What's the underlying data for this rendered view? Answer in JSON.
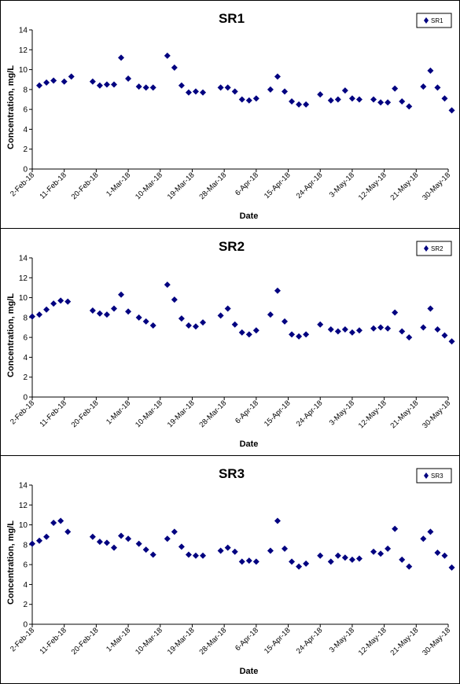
{
  "chart_data": [
    {
      "type": "scatter",
      "title": "SR1",
      "xlabel": "Date",
      "ylabel": "Concentration, mg/L",
      "ylim": [
        0,
        14
      ],
      "yticks": [
        0,
        2,
        4,
        6,
        8,
        10,
        12,
        14
      ],
      "xlim": [
        "2018-02-02",
        "2018-05-30"
      ],
      "xtick_labels": [
        "2-Feb-18",
        "11-Feb-18",
        "20-Feb-18",
        "1-Mar-18",
        "10-Mar-18",
        "19-Mar-18",
        "28-Mar-18",
        "6-Apr-18",
        "15-Apr-18",
        "24-Apr-18",
        "3-May-18",
        "12-May-18",
        "21-May-18",
        "30-May-18"
      ],
      "grid": false,
      "legend": "top-right",
      "marker": "diamond",
      "color": "#000080",
      "series": [
        {
          "name": "SR1",
          "points": [
            [
              "2018-02-04",
              8.4
            ],
            [
              "2018-02-06",
              8.7
            ],
            [
              "2018-02-08",
              8.9
            ],
            [
              "2018-02-11",
              8.8
            ],
            [
              "2018-02-13",
              9.3
            ],
            [
              "2018-02-19",
              8.8
            ],
            [
              "2018-02-21",
              8.4
            ],
            [
              "2018-02-23",
              8.5
            ],
            [
              "2018-02-25",
              8.5
            ],
            [
              "2018-02-27",
              11.2
            ],
            [
              "2018-03-01",
              9.1
            ],
            [
              "2018-03-04",
              8.3
            ],
            [
              "2018-03-06",
              8.2
            ],
            [
              "2018-03-08",
              8.2
            ],
            [
              "2018-03-12",
              11.4
            ],
            [
              "2018-03-14",
              10.2
            ],
            [
              "2018-03-16",
              8.4
            ],
            [
              "2018-03-18",
              7.7
            ],
            [
              "2018-03-20",
              7.8
            ],
            [
              "2018-03-22",
              7.7
            ],
            [
              "2018-03-27",
              8.2
            ],
            [
              "2018-03-29",
              8.2
            ],
            [
              "2018-03-31",
              7.8
            ],
            [
              "2018-04-02",
              7.0
            ],
            [
              "2018-04-04",
              6.9
            ],
            [
              "2018-04-06",
              7.1
            ],
            [
              "2018-04-10",
              8.0
            ],
            [
              "2018-04-12",
              9.3
            ],
            [
              "2018-04-14",
              7.8
            ],
            [
              "2018-04-16",
              6.8
            ],
            [
              "2018-04-18",
              6.5
            ],
            [
              "2018-04-20",
              6.5
            ],
            [
              "2018-04-24",
              7.5
            ],
            [
              "2018-04-27",
              6.9
            ],
            [
              "2018-04-29",
              7.0
            ],
            [
              "2018-05-01",
              7.9
            ],
            [
              "2018-05-03",
              7.1
            ],
            [
              "2018-05-05",
              7.0
            ],
            [
              "2018-05-09",
              7.0
            ],
            [
              "2018-05-11",
              6.7
            ],
            [
              "2018-05-13",
              6.7
            ],
            [
              "2018-05-15",
              8.1
            ],
            [
              "2018-05-17",
              6.8
            ],
            [
              "2018-05-19",
              6.3
            ],
            [
              "2018-05-23",
              8.3
            ],
            [
              "2018-05-25",
              9.9
            ],
            [
              "2018-05-27",
              8.2
            ],
            [
              "2018-05-29",
              7.1
            ],
            [
              "2018-05-31",
              5.9
            ]
          ]
        }
      ]
    },
    {
      "type": "scatter",
      "title": "SR2",
      "xlabel": "Date",
      "ylabel": "Concentration, mg/L",
      "ylim": [
        0,
        14
      ],
      "yticks": [
        0,
        2,
        4,
        6,
        8,
        10,
        12,
        14
      ],
      "xlim": [
        "2018-02-02",
        "2018-05-30"
      ],
      "xtick_labels": [
        "2-Feb-18",
        "11-Feb-18",
        "20-Feb-18",
        "1-Mar-18",
        "10-Mar-18",
        "19-Mar-18",
        "28-Mar-18",
        "6-Apr-18",
        "15-Apr-18",
        "24-Apr-18",
        "3-May-18",
        "12-May-18",
        "21-May-18",
        "30-May-18"
      ],
      "grid": false,
      "legend": "top-right",
      "marker": "diamond",
      "color": "#000080",
      "series": [
        {
          "name": "SR2",
          "points": [
            [
              "2018-02-02",
              8.1
            ],
            [
              "2018-02-04",
              8.3
            ],
            [
              "2018-02-06",
              8.8
            ],
            [
              "2018-02-08",
              9.4
            ],
            [
              "2018-02-10",
              9.7
            ],
            [
              "2018-02-12",
              9.6
            ],
            [
              "2018-02-19",
              8.7
            ],
            [
              "2018-02-21",
              8.4
            ],
            [
              "2018-02-23",
              8.3
            ],
            [
              "2018-02-25",
              8.9
            ],
            [
              "2018-02-27",
              10.3
            ],
            [
              "2018-03-01",
              8.6
            ],
            [
              "2018-03-04",
              8.0
            ],
            [
              "2018-03-06",
              7.6
            ],
            [
              "2018-03-08",
              7.2
            ],
            [
              "2018-03-12",
              11.3
            ],
            [
              "2018-03-14",
              9.8
            ],
            [
              "2018-03-16",
              7.9
            ],
            [
              "2018-03-18",
              7.2
            ],
            [
              "2018-03-20",
              7.1
            ],
            [
              "2018-03-22",
              7.5
            ],
            [
              "2018-03-27",
              8.2
            ],
            [
              "2018-03-29",
              8.9
            ],
            [
              "2018-03-31",
              7.3
            ],
            [
              "2018-04-02",
              6.5
            ],
            [
              "2018-04-04",
              6.3
            ],
            [
              "2018-04-06",
              6.7
            ],
            [
              "2018-04-10",
              8.3
            ],
            [
              "2018-04-12",
              10.7
            ],
            [
              "2018-04-14",
              7.6
            ],
            [
              "2018-04-16",
              6.3
            ],
            [
              "2018-04-18",
              6.1
            ],
            [
              "2018-04-20",
              6.3
            ],
            [
              "2018-04-24",
              7.3
            ],
            [
              "2018-04-27",
              6.8
            ],
            [
              "2018-04-29",
              6.6
            ],
            [
              "2018-05-01",
              6.8
            ],
            [
              "2018-05-03",
              6.5
            ],
            [
              "2018-05-05",
              6.7
            ],
            [
              "2018-05-09",
              6.9
            ],
            [
              "2018-05-11",
              7.0
            ],
            [
              "2018-05-13",
              6.9
            ],
            [
              "2018-05-15",
              8.5
            ],
            [
              "2018-05-17",
              6.6
            ],
            [
              "2018-05-19",
              6.0
            ],
            [
              "2018-05-23",
              7.0
            ],
            [
              "2018-05-25",
              8.9
            ],
            [
              "2018-05-27",
              6.8
            ],
            [
              "2018-05-29",
              6.2
            ],
            [
              "2018-05-31",
              5.6
            ]
          ]
        }
      ]
    },
    {
      "type": "scatter",
      "title": "SR3",
      "xlabel": "Date",
      "ylabel": "Concentration, mg/L",
      "ylim": [
        0,
        14
      ],
      "yticks": [
        0,
        2,
        4,
        6,
        8,
        10,
        12,
        14
      ],
      "xlim": [
        "2018-02-02",
        "2018-05-30"
      ],
      "xtick_labels": [
        "2-Feb-18",
        "11-Feb-18",
        "20-Feb-18",
        "1-Mar-18",
        "10-Mar-18",
        "19-Mar-18",
        "28-Mar-18",
        "6-Apr-18",
        "15-Apr-18",
        "24-Apr-18",
        "3-May-18",
        "12-May-18",
        "21-May-18",
        "30-May-18"
      ],
      "grid": false,
      "legend": "top-right",
      "marker": "diamond",
      "color": "#000080",
      "series": [
        {
          "name": "SR3",
          "points": [
            [
              "2018-02-02",
              8.1
            ],
            [
              "2018-02-04",
              8.4
            ],
            [
              "2018-02-06",
              8.8
            ],
            [
              "2018-02-08",
              10.2
            ],
            [
              "2018-02-10",
              10.4
            ],
            [
              "2018-02-12",
              9.3
            ],
            [
              "2018-02-19",
              8.8
            ],
            [
              "2018-02-21",
              8.3
            ],
            [
              "2018-02-23",
              8.2
            ],
            [
              "2018-02-25",
              7.7
            ],
            [
              "2018-02-27",
              8.9
            ],
            [
              "2018-03-01",
              8.6
            ],
            [
              "2018-03-04",
              8.1
            ],
            [
              "2018-03-06",
              7.5
            ],
            [
              "2018-03-08",
              7.0
            ],
            [
              "2018-03-12",
              8.6
            ],
            [
              "2018-03-14",
              9.3
            ],
            [
              "2018-03-16",
              7.8
            ],
            [
              "2018-03-18",
              7.0
            ],
            [
              "2018-03-20",
              6.9
            ],
            [
              "2018-03-22",
              6.9
            ],
            [
              "2018-03-27",
              7.4
            ],
            [
              "2018-03-29",
              7.7
            ],
            [
              "2018-03-31",
              7.3
            ],
            [
              "2018-04-02",
              6.3
            ],
            [
              "2018-04-04",
              6.4
            ],
            [
              "2018-04-06",
              6.3
            ],
            [
              "2018-04-10",
              7.4
            ],
            [
              "2018-04-12",
              10.4
            ],
            [
              "2018-04-14",
              7.6
            ],
            [
              "2018-04-16",
              6.3
            ],
            [
              "2018-04-18",
              5.8
            ],
            [
              "2018-04-20",
              6.1
            ],
            [
              "2018-04-24",
              6.9
            ],
            [
              "2018-04-27",
              6.3
            ],
            [
              "2018-04-29",
              6.9
            ],
            [
              "2018-05-01",
              6.7
            ],
            [
              "2018-05-03",
              6.5
            ],
            [
              "2018-05-05",
              6.6
            ],
            [
              "2018-05-09",
              7.3
            ],
            [
              "2018-05-11",
              7.1
            ],
            [
              "2018-05-13",
              7.6
            ],
            [
              "2018-05-15",
              9.6
            ],
            [
              "2018-05-17",
              6.5
            ],
            [
              "2018-05-19",
              5.8
            ],
            [
              "2018-05-23",
              8.6
            ],
            [
              "2018-05-25",
              9.3
            ],
            [
              "2018-05-27",
              7.2
            ],
            [
              "2018-05-29",
              6.9
            ],
            [
              "2018-05-31",
              5.7
            ]
          ]
        }
      ]
    }
  ]
}
